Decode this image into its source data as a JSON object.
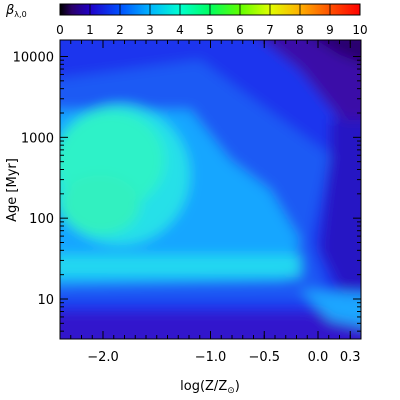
{
  "chart_data": {
    "type": "heatmap",
    "colorbar": {
      "label_main": "β",
      "label_sub": "λ,0",
      "range": [
        0,
        10
      ],
      "tick_values": [
        0,
        1,
        2,
        3,
        4,
        5,
        6,
        7,
        8,
        9,
        10
      ],
      "tick_labels": [
        "0",
        "1",
        "2",
        "3",
        "4",
        "5",
        "6",
        "7",
        "8",
        "9",
        "10"
      ],
      "placement": "top"
    },
    "xlabel": {
      "prefix": "log(Z/Z",
      "sub": "⊙",
      "suffix": ")"
    },
    "ylabel": {
      "text": "Age ",
      "unit": "[Myr]"
    },
    "x_range": [
      -2.4,
      0.4
    ],
    "y_scale": "log",
    "y_range": [
      3.2,
      16000
    ],
    "x_ticks": [
      {
        "value": -2.0,
        "label": "−2.0"
      },
      {
        "value": -1.0,
        "label": "−1.0"
      },
      {
        "value": -0.5,
        "label": "−0.5"
      },
      {
        "value": 0.0,
        "label": "0.0"
      },
      {
        "value": 0.3,
        "label": "0.3"
      }
    ],
    "y_ticks": [
      {
        "value": 10,
        "label": "10"
      },
      {
        "value": 100,
        "label": "100"
      },
      {
        "value": 1000,
        "label": "1000"
      },
      {
        "value": 10000,
        "label": "10000"
      }
    ],
    "grid": false,
    "value_field_note": "beta_lambda,0 as function of log(Z/Zsun) and log Age; approximate values read from colour map",
    "z_samples": [
      {
        "log_z": -2.0,
        "age_myr": 5,
        "beta": 1.1
      },
      {
        "log_z": -2.0,
        "age_myr": 30,
        "beta": 3.6
      },
      {
        "log_z": -2.0,
        "age_myr": 200,
        "beta": 4.4
      },
      {
        "log_z": -2.0,
        "age_myr": 600,
        "beta": 4.2
      },
      {
        "log_z": -2.0,
        "age_myr": 3000,
        "beta": 2.2
      },
      {
        "log_z": -2.0,
        "age_myr": 12000,
        "beta": 1.9
      },
      {
        "log_z": -1.0,
        "age_myr": 30,
        "beta": 3.3
      },
      {
        "log_z": -1.0,
        "age_myr": 200,
        "beta": 3.0
      },
      {
        "log_z": -0.5,
        "age_myr": 200,
        "beta": 2.7
      },
      {
        "log_z": -0.3,
        "age_myr": 300,
        "beta": 2.0
      },
      {
        "log_z": 0.0,
        "age_myr": 300,
        "beta": 1.5
      },
      {
        "log_z": 0.3,
        "age_myr": 3000,
        "beta": 1.1
      },
      {
        "log_z": 0.3,
        "age_myr": 12000,
        "beta": 0.5
      },
      {
        "log_z": 0.3,
        "age_myr": 7,
        "beta": 2.8
      },
      {
        "log_z": -1.0,
        "age_myr": 4,
        "beta": 0.8
      }
    ]
  }
}
